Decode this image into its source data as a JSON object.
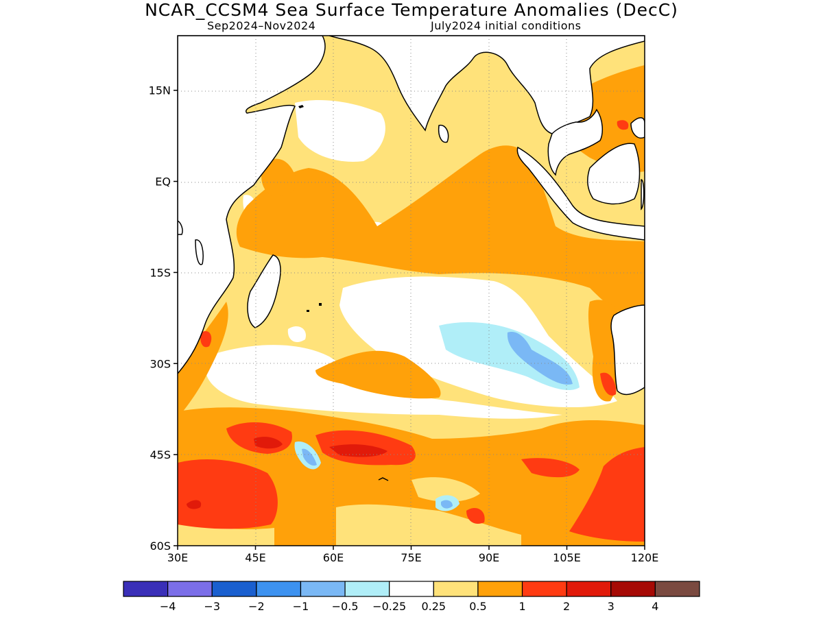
{
  "title": "NCAR_CCSM4 Sea Surface Temperature Anomalies (DecC)",
  "subtitle_left": "Sep2024–Nov2024",
  "subtitle_right": "July2024 initial conditions",
  "map": {
    "lon_range": [
      30,
      120
    ],
    "lat_range": [
      -60,
      24
    ],
    "lat_ticks": [
      {
        "value": 15,
        "label": "15N"
      },
      {
        "value": 0,
        "label": "EQ"
      },
      {
        "value": -15,
        "label": "15S"
      },
      {
        "value": -30,
        "label": "30S"
      },
      {
        "value": -45,
        "label": "45S"
      },
      {
        "value": -60,
        "label": "60S"
      }
    ],
    "lon_ticks": [
      {
        "value": 30,
        "label": "30E"
      },
      {
        "value": 45,
        "label": "45E"
      },
      {
        "value": 60,
        "label": "60E"
      },
      {
        "value": 75,
        "label": "75E"
      },
      {
        "value": 90,
        "label": "90E"
      },
      {
        "value": 105,
        "label": "105E"
      },
      {
        "value": 120,
        "label": "120E"
      }
    ],
    "grid": "dotted"
  },
  "colorbar": {
    "colors": [
      "#3a2fb8",
      "#7b6ee8",
      "#1a5fcf",
      "#3d92f0",
      "#7ab8f5",
      "#b0eef8",
      "#ffffff",
      "#ffe27a",
      "#ffa10a",
      "#ff3b12",
      "#e11a0a",
      "#a60a05",
      "#7a4a40"
    ],
    "labels": [
      "−4",
      "−3",
      "−2",
      "−1",
      "−0.5",
      "−0.25",
      "0.25",
      "0.5",
      "1",
      "2",
      "3",
      "4"
    ]
  }
}
